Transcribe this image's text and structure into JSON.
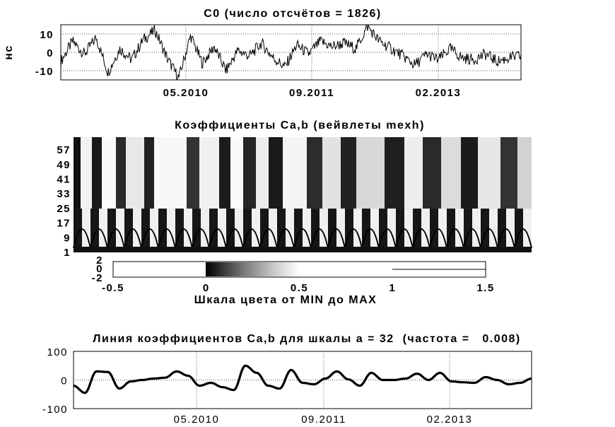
{
  "chart_data": [
    {
      "type": "line",
      "title": "C0  (число отсчётов = 1826)",
      "ylabel": "нс",
      "xlabel": "",
      "ylim": [
        -15,
        15
      ],
      "yticks": [
        "10",
        "0",
        "-10"
      ],
      "ytick_values": [
        10,
        0,
        -10
      ],
      "xticks": [
        "05.2010",
        "09.2011",
        "02.2013"
      ],
      "n_samples": 1826,
      "grid": "dotted",
      "series": [
        {
          "values": [
            -5,
            6,
            -1,
            8,
            -11,
            2,
            -4,
            7,
            12,
            -3,
            -14,
            9,
            -6,
            3,
            -10,
            1,
            -2,
            5,
            -3,
            -8,
            4,
            -1,
            6,
            3,
            5,
            2,
            14,
            6,
            2,
            -2,
            -7,
            -1,
            -4,
            2,
            -3,
            -4,
            -1,
            -5,
            -3,
            -2
          ]
        }
      ]
    },
    {
      "type": "heatmap",
      "title": "Коэффициенты Ca,b (вейвлеты mexh)",
      "yticks": [
        "57",
        "49",
        "41",
        "33",
        "25",
        "17",
        "9",
        "1"
      ],
      "ytick_values": [
        57,
        49,
        41,
        33,
        25,
        17,
        9,
        1
      ],
      "colormap": "gray",
      "colorbar": {
        "label": "Шкала цвета от MIN до MAX",
        "xticks": [
          "-0.5",
          "0",
          "0.5",
          "1",
          "1.5"
        ],
        "xtick_values": [
          -0.5,
          0,
          0.5,
          1,
          1.5
        ],
        "yticks": [
          "2",
          "0",
          "-2"
        ],
        "gradient_range": [
          0,
          0.5
        ]
      }
    },
    {
      "type": "line",
      "title": "Линия коэффициентов Ca,b для шкалы a = 32  (частота =   0.008)",
      "xlabel": "",
      "ylabel": "",
      "ylim": [
        -100,
        100
      ],
      "yticks": [
        "100",
        "0",
        "-100"
      ],
      "ytick_values": [
        100,
        0,
        -100
      ],
      "xticks": [
        "05.2010",
        "09.2011",
        "02.2013"
      ],
      "grid": "dotted",
      "series": [
        {
          "values": [
            -20,
            -45,
            30,
            28,
            -30,
            -5,
            0,
            5,
            8,
            30,
            15,
            -20,
            -10,
            -25,
            -35,
            50,
            25,
            -20,
            -30,
            35,
            -10,
            -15,
            5,
            30,
            2,
            -20,
            25,
            0,
            0,
            5,
            22,
            0,
            25,
            -5,
            -8,
            -10,
            10,
            0,
            -15,
            -10,
            5
          ]
        }
      ]
    }
  ]
}
